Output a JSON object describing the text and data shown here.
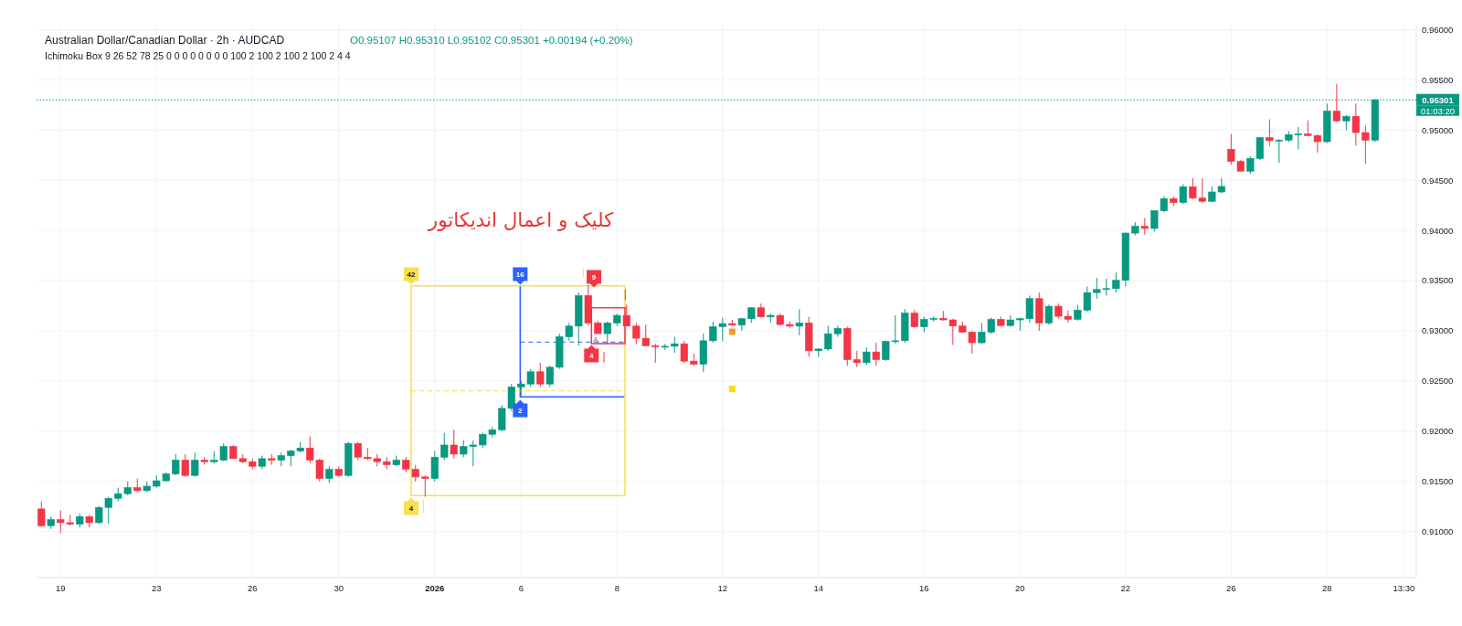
{
  "chart_data": {
    "type": "candlestick",
    "title": "Australian Dollar/Canadian Dollar · 2h · AUDCAD",
    "subtitle": "Ichimoku Box 9 26 52 78 25 0 0 0 0 0 0 0 0 100 2 100 2 100 2 100 2 4 4",
    "categories": [
      null,
      null,
      "19",
      null,
      null,
      null,
      null,
      null,
      null,
      null,
      null,
      null,
      "23",
      null,
      null,
      null,
      null,
      null,
      null,
      null,
      null,
      null,
      "26",
      null,
      null,
      null,
      null,
      null,
      null,
      null,
      null,
      "30",
      null,
      null,
      null,
      null,
      null,
      null,
      null,
      null,
      null,
      "**2026**",
      null,
      null,
      null,
      null,
      null,
      null,
      null,
      null,
      "6",
      null,
      null,
      null,
      null,
      null,
      null,
      null,
      null,
      null,
      "8",
      null,
      null,
      null,
      null,
      null,
      null,
      null,
      null,
      null,
      null,
      "12",
      null,
      null,
      null,
      null,
      null,
      null,
      null,
      null,
      null,
      "14",
      null,
      null,
      null,
      null,
      null,
      null,
      null,
      null,
      null,
      null,
      "16",
      null,
      null,
      null,
      null,
      null,
      null,
      null,
      null,
      null,
      "20",
      null,
      null,
      null,
      null,
      null,
      null,
      null,
      null,
      null,
      null,
      "22",
      null,
      null,
      null,
      null,
      null,
      null,
      null,
      null,
      null,
      null,
      "26",
      null,
      null,
      null,
      null,
      null,
      null,
      null,
      null,
      null,
      "28",
      null,
      null,
      null,
      null,
      null,
      null,
      null,
      "13:30"
    ],
    "ohlc": [
      [
        0.91224,
        0.913,
        0.91048,
        0.91057
      ],
      [
        0.91057,
        0.91148,
        0.91026,
        0.91118
      ],
      [
        0.91118,
        0.91209,
        0.90981,
        0.91087
      ],
      [
        0.91087,
        0.91163,
        0.91057,
        0.91072
      ],
      [
        0.91072,
        0.91178,
        0.91041,
        0.91148
      ],
      [
        0.91148,
        0.91163,
        0.91041,
        0.91087
      ],
      [
        0.91087,
        0.91254,
        0.91072,
        0.91239
      ],
      [
        0.91239,
        0.91345,
        0.91078,
        0.9133
      ],
      [
        0.9133,
        0.91436,
        0.913,
        0.91376
      ],
      [
        0.91376,
        0.91497,
        0.9136,
        0.91436
      ],
      [
        0.91436,
        0.91527,
        0.91391,
        0.91406
      ],
      [
        0.91406,
        0.91497,
        0.91391,
        0.91451
      ],
      [
        0.91451,
        0.91558,
        0.91436,
        0.91505
      ],
      [
        0.91505,
        0.91588,
        0.91497,
        0.91573
      ],
      [
        0.91573,
        0.91771,
        0.91558,
        0.9171
      ],
      [
        0.9171,
        0.91771,
        0.91543,
        0.91558
      ],
      [
        0.91558,
        0.91786,
        0.91543,
        0.9171
      ],
      [
        0.9171,
        0.9174,
        0.91664,
        0.91695
      ],
      [
        0.91695,
        0.91801,
        0.91679,
        0.9171
      ],
      [
        0.9171,
        0.91877,
        0.917,
        0.91846
      ],
      [
        0.91846,
        0.91862,
        0.91725,
        0.91725
      ],
      [
        0.91725,
        0.91771,
        0.91679,
        0.91695
      ],
      [
        0.91695,
        0.91725,
        0.91619,
        0.91649
      ],
      [
        0.91649,
        0.91755,
        0.91619,
        0.91725
      ],
      [
        0.91725,
        0.91771,
        0.91664,
        0.9171
      ],
      [
        0.9171,
        0.91786,
        0.91649,
        0.91755
      ],
      [
        0.91755,
        0.91816,
        0.91649,
        0.91801
      ],
      [
        0.91801,
        0.91892,
        0.91786,
        0.91831
      ],
      [
        0.91831,
        0.91947,
        0.91679,
        0.9171
      ],
      [
        0.9171,
        0.91725,
        0.91497,
        0.91527
      ],
      [
        0.91527,
        0.91649,
        0.91482,
        0.91619
      ],
      [
        0.91619,
        0.91649,
        0.91543,
        0.91558
      ],
      [
        0.91558,
        0.91892,
        0.91543,
        0.91877
      ],
      [
        0.91877,
        0.91892,
        0.9171,
        0.9174
      ],
      [
        0.9174,
        0.91831,
        0.9171,
        0.91725
      ],
      [
        0.91725,
        0.91771,
        0.91649,
        0.91695
      ],
      [
        0.91695,
        0.9174,
        0.91619,
        0.91664
      ],
      [
        0.91664,
        0.91755,
        0.91649,
        0.9171
      ],
      [
        0.9171,
        0.9174,
        0.91588,
        0.91619
      ],
      [
        0.91619,
        0.91664,
        0.91497,
        0.91543
      ],
      [
        0.91543,
        0.91558,
        0.91345,
        0.91527
      ],
      [
        0.91527,
        0.91801,
        0.91497,
        0.9174
      ],
      [
        0.9174,
        0.91983,
        0.9171,
        0.91861
      ],
      [
        0.91861,
        0.92013,
        0.91725,
        0.9177
      ],
      [
        0.9177,
        0.91907,
        0.9174,
        0.91846
      ],
      [
        0.91846,
        0.91907,
        0.91649,
        0.91861
      ],
      [
        0.91861,
        0.91983,
        0.9183,
        0.91968
      ],
      [
        0.91968,
        0.92044,
        0.91937,
        0.92013
      ],
      [
        0.92013,
        0.92256,
        0.92,
        0.92226
      ],
      [
        0.92226,
        0.92469,
        0.922,
        0.92439
      ],
      [
        0.92439,
        0.925,
        0.92348,
        0.92469
      ],
      [
        0.92469,
        0.9262,
        0.9244,
        0.92591
      ],
      [
        0.92591,
        0.92681,
        0.9244,
        0.92469
      ],
      [
        0.92469,
        0.92651,
        0.92439,
        0.92636
      ],
      [
        0.92636,
        0.92971,
        0.9262,
        0.9294
      ],
      [
        0.9294,
        0.93077,
        0.929,
        0.93046
      ],
      [
        0.93046,
        0.93381,
        0.9285,
        0.9335
      ],
      [
        0.9335,
        0.93456,
        0.9305,
        0.93077
      ],
      [
        0.93077,
        0.931,
        0.9297,
        0.92971
      ],
      [
        0.92971,
        0.9309,
        0.92865,
        0.93077
      ],
      [
        0.93077,
        0.93168,
        0.93046,
        0.93153
      ],
      [
        0.93153,
        0.93259,
        0.93046,
        0.93046
      ],
      [
        0.93046,
        0.93077,
        0.92865,
        0.92925
      ],
      [
        0.92925,
        0.93062,
        0.9285,
        0.9285
      ],
      [
        0.9285,
        0.9287,
        0.9268,
        0.9284
      ],
      [
        0.9284,
        0.9287,
        0.9281,
        0.92845
      ],
      [
        0.92845,
        0.9294,
        0.9278,
        0.9287
      ],
      [
        0.9287,
        0.929,
        0.9268,
        0.92697
      ],
      [
        0.92697,
        0.92773,
        0.92651,
        0.92666
      ],
      [
        0.92666,
        0.9297,
        0.9259,
        0.929
      ],
      [
        0.929,
        0.9309,
        0.9288,
        0.9304
      ],
      [
        0.9304,
        0.9313,
        0.92894,
        0.93071
      ],
      [
        0.93071,
        0.9311,
        0.9305,
        0.93056
      ],
      [
        0.93056,
        0.9313,
        0.93,
        0.9312
      ],
      [
        0.9312,
        0.93229,
        0.93077,
        0.93229
      ],
      [
        0.93229,
        0.9327,
        0.9313,
        0.93138
      ],
      [
        0.93138,
        0.9317,
        0.9308,
        0.93153
      ],
      [
        0.93153,
        0.9317,
        0.9305,
        0.93062
      ],
      [
        0.93062,
        0.9309,
        0.9303,
        0.93046
      ],
      [
        0.93046,
        0.93214,
        0.92955,
        0.93077
      ],
      [
        0.93077,
        0.93138,
        0.92742,
        0.928
      ],
      [
        0.928,
        0.9282,
        0.9274,
        0.92818
      ],
      [
        0.92818,
        0.9305,
        0.928,
        0.9297
      ],
      [
        0.9297,
        0.9305,
        0.9294,
        0.93023
      ],
      [
        0.93023,
        0.9304,
        0.92651,
        0.92712
      ],
      [
        0.92712,
        0.928,
        0.92636,
        0.92682
      ],
      [
        0.92682,
        0.92834,
        0.9266,
        0.92788
      ],
      [
        0.92788,
        0.9288,
        0.92651,
        0.92712
      ],
      [
        0.92712,
        0.929,
        0.927,
        0.92894
      ],
      [
        0.92894,
        0.93153,
        0.9287,
        0.929
      ],
      [
        0.929,
        0.93214,
        0.9288,
        0.93175
      ],
      [
        0.93175,
        0.9321,
        0.9303,
        0.9304
      ],
      [
        0.9304,
        0.9314,
        0.92986,
        0.93113
      ],
      [
        0.93113,
        0.93144,
        0.9309,
        0.93123
      ],
      [
        0.93123,
        0.93198,
        0.931,
        0.93108
      ],
      [
        0.93108,
        0.9312,
        0.92858,
        0.93047
      ],
      [
        0.93047,
        0.93092,
        0.9298,
        0.92986
      ],
      [
        0.92986,
        0.93,
        0.92773,
        0.9288
      ],
      [
        0.9288,
        0.93077,
        0.9287,
        0.92986
      ],
      [
        0.92986,
        0.9313,
        0.9297,
        0.93113
      ],
      [
        0.93113,
        0.9314,
        0.9304,
        0.93052
      ],
      [
        0.93052,
        0.93153,
        0.9304,
        0.93108
      ],
      [
        0.93108,
        0.9313,
        0.93,
        0.9312
      ],
      [
        0.9312,
        0.9335,
        0.9308,
        0.9332
      ],
      [
        0.9332,
        0.9338,
        0.93,
        0.93077
      ],
      [
        0.93077,
        0.9326,
        0.9306,
        0.93244
      ],
      [
        0.93244,
        0.9327,
        0.9312,
        0.93144
      ],
      [
        0.93144,
        0.932,
        0.9308,
        0.93114
      ],
      [
        0.93114,
        0.9326,
        0.931,
        0.93205
      ],
      [
        0.93205,
        0.93441,
        0.9319,
        0.9338
      ],
      [
        0.9338,
        0.93527,
        0.9332,
        0.93411
      ],
      [
        0.93411,
        0.93517,
        0.9335,
        0.9342
      ],
      [
        0.9342,
        0.93578,
        0.9338,
        0.93502
      ],
      [
        0.93502,
        0.9398,
        0.93441,
        0.93973
      ],
      [
        0.93973,
        0.9408,
        0.9395,
        0.9404
      ],
      [
        0.9404,
        0.94125,
        0.93958,
        0.94019
      ],
      [
        0.94019,
        0.94195,
        0.93988,
        0.94195
      ],
      [
        0.94195,
        0.94338,
        0.9418,
        0.94316
      ],
      [
        0.94316,
        0.9434,
        0.9424,
        0.94277
      ],
      [
        0.94277,
        0.9446,
        0.94262,
        0.94435
      ],
      [
        0.94435,
        0.9452,
        0.9431,
        0.94322
      ],
      [
        0.94322,
        0.9452,
        0.94268,
        0.9429
      ],
      [
        0.9429,
        0.94438,
        0.9428,
        0.94383
      ],
      [
        0.94383,
        0.9452,
        0.9437,
        0.94438
      ],
      [
        0.94808,
        0.9496,
        0.94656,
        0.94687
      ],
      [
        0.94687,
        0.947,
        0.9459,
        0.9459
      ],
      [
        0.9459,
        0.9474,
        0.9456,
        0.94717
      ],
      [
        0.94717,
        0.9493,
        0.947,
        0.94924
      ],
      [
        0.94924,
        0.95106,
        0.9484,
        0.94894
      ],
      [
        0.94894,
        0.9491,
        0.94672,
        0.94899
      ],
      [
        0.94899,
        0.9499,
        0.9488,
        0.94954
      ],
      [
        0.94954,
        0.9503,
        0.94808,
        0.9496
      ],
      [
        0.9496,
        0.95097,
        0.9494,
        0.94945
      ],
      [
        0.94945,
        0.9496,
        0.94775,
        0.94884
      ],
      [
        0.94884,
        0.95264,
        0.9487,
        0.95188
      ],
      [
        0.95188,
        0.95461,
        0.9508,
        0.95091
      ],
      [
        0.95091,
        0.9515,
        0.94998,
        0.95136
      ],
      [
        0.95136,
        0.95264,
        0.94845,
        0.94975
      ],
      [
        0.94975,
        0.95046,
        0.94663,
        0.94899
      ],
      [
        0.94899,
        0.9531,
        0.9488,
        0.95301
      ],
      null,
      null,
      null
    ],
    "colors": [
      "#f23645",
      "#089981",
      "#f23645",
      "#f23645",
      "#089981",
      "#f23645",
      "#089981",
      "#089981",
      "#089981",
      "#089981",
      "#f23645",
      "#089981",
      "#089981",
      "#089981",
      "#089981",
      "#f23645",
      "#089981",
      "#f23645",
      "#089981",
      "#089981",
      "#f23645",
      "#f23645",
      "#f23645",
      "#089981",
      "#f23645",
      "#089981",
      "#089981",
      "#089981",
      "#f23645",
      "#f23645",
      "#089981",
      "#f23645",
      "#089981",
      "#f23645",
      "#f23645",
      "#f23645",
      "#f23645",
      "#089981",
      "#f23645",
      "#f23645",
      "#f23645",
      "#089981",
      "#089981",
      "#f23645",
      "#089981",
      "#089981",
      "#089981",
      "#089981",
      "#089981",
      "#089981",
      "#089981",
      "#089981",
      "#f23645",
      "#089981",
      "#089981",
      "#089981",
      "#089981",
      "#f23645",
      "#f23645",
      "#089981",
      "#089981",
      "#f23645",
      "#f23645",
      "#f23645",
      "#f23645",
      "#089981",
      "#089981",
      "#f23645",
      "#f23645",
      "#089981",
      "#089981",
      "#089981",
      "#f23645",
      "#089981",
      "#089981",
      "#f23645",
      "#089981",
      "#f23645",
      "#f23645",
      "#089981",
      "#f23645",
      "#089981",
      "#089981",
      "#089981",
      "#f23645",
      "#f23645",
      "#089981",
      "#f23645",
      "#089981",
      "#089981",
      "#089981",
      "#f23645",
      "#089981",
      "#089981",
      "#f23645",
      "#f23645",
      "#f23645",
      "#f23645",
      "#089981",
      "#089981",
      "#f23645",
      "#089981",
      "#089981",
      "#089981",
      "#f23645",
      "#089981",
      "#f23645",
      "#f23645",
      "#089981",
      "#089981",
      "#089981",
      "#089981",
      "#089981",
      "#089981",
      "#089981",
      "#f23645",
      "#089981",
      "#089981",
      "#f23645",
      "#089981",
      "#f23645",
      "#f23645",
      "#089981",
      "#089981",
      "#f23645",
      "#f23645",
      "#089981",
      "#089981",
      "#f23645",
      "#089981",
      "#089981",
      "#089981",
      "#f23645",
      "#f23645",
      "#089981",
      "#f23645",
      "#089981",
      "#f23645",
      "#f23645",
      "#089981",
      null,
      null,
      null
    ],
    "series": [
      {
        "type": "scatter",
        "color": "#f59a23",
        "marker": "square",
        "values": [
          null,
          null,
          null,
          null,
          null,
          null,
          null,
          null,
          null,
          null,
          null,
          null,
          null,
          null,
          null,
          null,
          null,
          null,
          null,
          null,
          null,
          null,
          null,
          null,
          null,
          null,
          null,
          null,
          null,
          null,
          null,
          null,
          null,
          null,
          null,
          null,
          null,
          null,
          null,
          null,
          null,
          null,
          null,
          null,
          null,
          null,
          null,
          null,
          null,
          null,
          null,
          null,
          null,
          null,
          null,
          null,
          null,
          null,
          null,
          null,
          null,
          null,
          null,
          null,
          null,
          null,
          null,
          null,
          null,
          null,
          null,
          null,
          0.9299,
          null,
          null,
          null,
          null,
          null,
          null,
          null,
          null,
          null,
          null,
          null,
          null,
          null,
          null,
          null,
          null,
          null,
          null,
          null,
          null,
          null,
          null,
          null,
          null,
          null,
          null,
          null,
          null,
          null,
          null,
          null,
          null,
          null,
          null,
          null,
          null,
          null,
          null,
          null,
          null,
          null,
          null,
          null,
          null,
          null,
          null,
          null,
          null,
          null,
          null,
          null,
          null,
          null,
          null,
          null,
          null,
          null,
          null,
          null,
          null,
          null,
          null,
          null,
          null,
          null,
          null,
          null,
          null,
          null,
          null
        ]
      },
      {
        "type": "scatter",
        "color": "#f9dc0a",
        "marker": "square",
        "values": [
          null,
          null,
          null,
          null,
          null,
          null,
          null,
          null,
          null,
          null,
          null,
          null,
          null,
          null,
          null,
          null,
          null,
          null,
          null,
          null,
          null,
          null,
          null,
          null,
          null,
          null,
          null,
          null,
          null,
          null,
          null,
          null,
          null,
          null,
          null,
          null,
          null,
          null,
          null,
          null,
          null,
          null,
          null,
          null,
          null,
          null,
          null,
          null,
          null,
          null,
          null,
          null,
          null,
          null,
          null,
          null,
          null,
          null,
          null,
          null,
          null,
          null,
          null,
          null,
          null,
          null,
          null,
          null,
          null,
          null,
          null,
          null,
          0.9242,
          null,
          null,
          null,
          null,
          null,
          null,
          null,
          null,
          null,
          null,
          null,
          null,
          null,
          null,
          null,
          null,
          null,
          null,
          null,
          null,
          null,
          null,
          null,
          null,
          null,
          null,
          null,
          null,
          null,
          null,
          null,
          null,
          null,
          null,
          null,
          null,
          null,
          null,
          null,
          null,
          null,
          null,
          null,
          null,
          null,
          null,
          null,
          null,
          null,
          null,
          null,
          null,
          null,
          null,
          null,
          null,
          null,
          null,
          null,
          null,
          null,
          null,
          null,
          null,
          null,
          null,
          null,
          null,
          null,
          null
        ]
      }
    ],
    "ylim": [
      0.9054,
      0.9605
    ],
    "yticks": [
      {
        "value": 0.91,
        "label": "0.91000"
      },
      {
        "value": 0.915,
        "label": "0.91500"
      },
      {
        "value": 0.92,
        "label": "0.92000"
      },
      {
        "value": 0.925,
        "label": "0.92500"
      },
      {
        "value": 0.93,
        "label": "0.93000"
      },
      {
        "value": 0.935,
        "label": "0.93500"
      },
      {
        "value": 0.94,
        "label": "0.94000"
      },
      {
        "value": 0.945,
        "label": "0.94500"
      },
      {
        "value": 0.95,
        "label": "0.95000"
      },
      {
        "value": 0.955,
        "label": "0.95500"
      },
      {
        "value": 0.96,
        "label": "0.96000"
      }
    ],
    "grid": true,
    "ref_lines": [
      {
        "axis": "y",
        "value": 0.95301,
        "label": "0.95301",
        "color": "#089981",
        "line_style": "dotted"
      }
    ],
    "annotations": [
      "O0.95107 H0.95310 L0.95102 C0.95301 +0.00194 (+0.20%)",
      "کلیک و اعمال اندیکاتور",
      "01:03:20",
      "42",
      "16",
      "9",
      "4",
      "2",
      "4",
      "A"
    ]
  }
}
